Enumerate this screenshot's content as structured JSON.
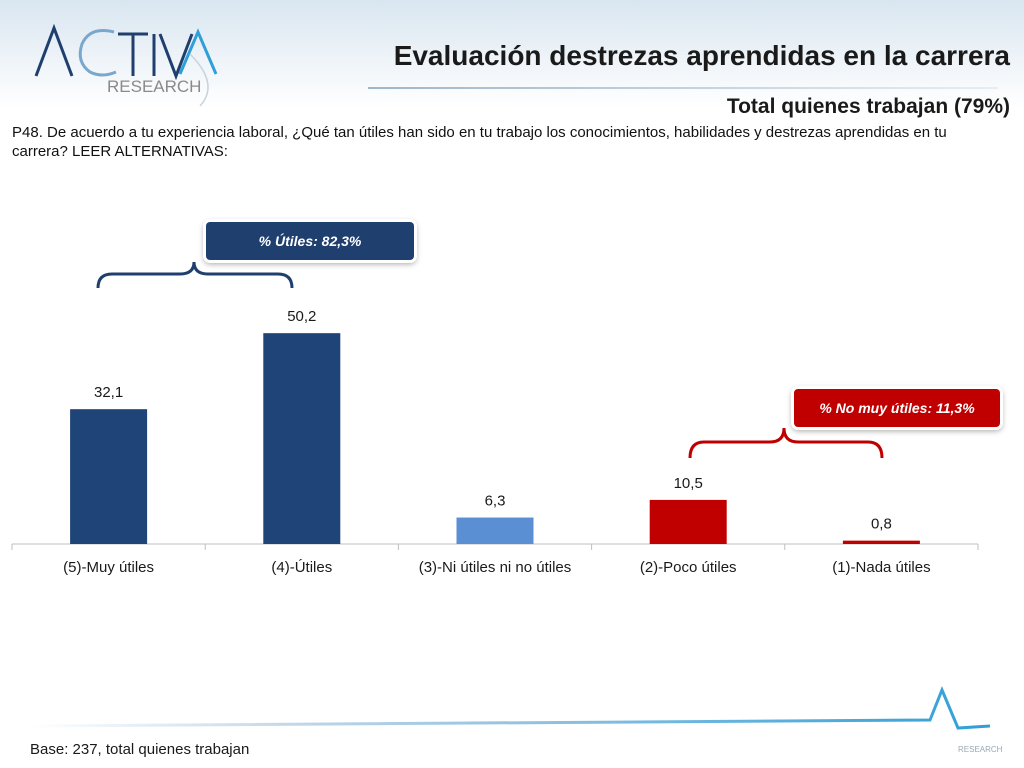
{
  "header": {
    "logo_text_main": "ACTIVA",
    "logo_text_sub": "RESEARCH",
    "title": "Evaluación destrezas aprendidas en la carrera",
    "subtitle": "Total quienes trabajan (79%)"
  },
  "question": "P48. De acuerdo a tu experiencia laboral, ¿Qué tan útiles han sido en tu trabajo los conocimientos, habilidades y destrezas aprendidas en tu carrera? LEER ALTERNATIVAS:",
  "callouts": {
    "utiles": "% Útiles:  82,3%",
    "no_muy_utiles": "% No muy útiles:  11,3%"
  },
  "chart_data": {
    "type": "bar",
    "categories": [
      "(5)-Muy útiles",
      "(4)-Útiles",
      "(3)-Ni útiles ni no útiles",
      "(2)-Poco útiles",
      "(1)-Nada útiles"
    ],
    "values": [
      32.1,
      50.2,
      6.3,
      10.5,
      0.8
    ],
    "value_labels": [
      "32,1",
      "50,2",
      "6,3",
      "10,5",
      "0,8"
    ],
    "colors": [
      "#1f4478",
      "#1f4478",
      "#5b8fd4",
      "#c00000",
      "#c00000"
    ],
    "ylim": [
      0,
      60
    ],
    "grid": false,
    "legend": "none"
  },
  "footer": {
    "base_note": "Base: 237, total quienes trabajan",
    "logo_sub": "RESEARCH"
  },
  "colors": {
    "brand_navy": "#1f3f6e",
    "brand_red": "#c00000",
    "brand_light_blue": "#5b8fd4"
  }
}
